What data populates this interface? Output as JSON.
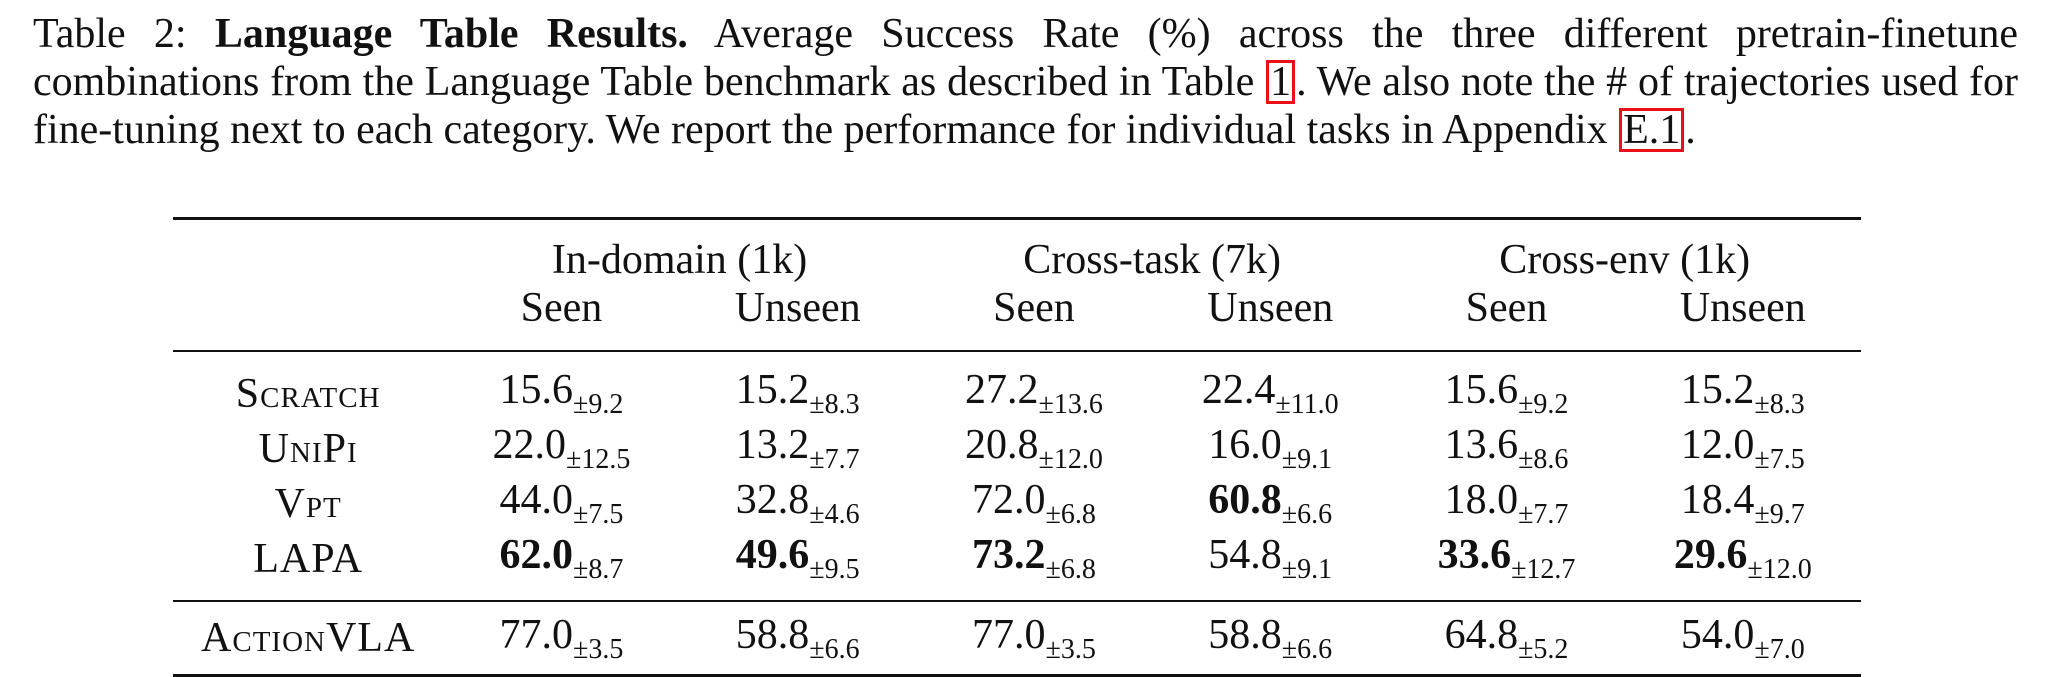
{
  "caption": {
    "label": "Table 2:",
    "title": "Language Table Results.",
    "text_1": "Average Success Rate (%) across the three different pretrain-finetune combinations from the Language Table benchmark as described in Table",
    "ref_table": "1",
    "text_2": ". We also note the # of trajectories used for fine-tuning next to each category. We report the performance for individual tasks in Appendix",
    "ref_appendix": "E.1",
    "text_3": "."
  },
  "table": {
    "groups": [
      "In-domain (1k)",
      "Cross-task (7k)",
      "Cross-env (1k)"
    ],
    "subheaders": [
      "Seen",
      "Unseen",
      "Seen",
      "Unseen",
      "Seen",
      "Unseen"
    ],
    "rows": [
      {
        "method": "Scratch",
        "cells": [
          {
            "value": "15.6",
            "std": "±9.2",
            "best": false
          },
          {
            "value": "15.2",
            "std": "±8.3",
            "best": false
          },
          {
            "value": "27.2",
            "std": "±13.6",
            "best": false
          },
          {
            "value": "22.4",
            "std": "±11.0",
            "best": false
          },
          {
            "value": "15.6",
            "std": "±9.2",
            "best": false
          },
          {
            "value": "15.2",
            "std": "±8.3",
            "best": false
          }
        ]
      },
      {
        "method": "UniPi",
        "cells": [
          {
            "value": "22.0",
            "std": "±12.5",
            "best": false
          },
          {
            "value": "13.2",
            "std": "±7.7",
            "best": false
          },
          {
            "value": "20.8",
            "std": "±12.0",
            "best": false
          },
          {
            "value": "16.0",
            "std": "±9.1",
            "best": false
          },
          {
            "value": "13.6",
            "std": "±8.6",
            "best": false
          },
          {
            "value": "12.0",
            "std": "±7.5",
            "best": false
          }
        ]
      },
      {
        "method": "Vpt",
        "cells": [
          {
            "value": "44.0",
            "std": "±7.5",
            "best": false
          },
          {
            "value": "32.8",
            "std": "±4.6",
            "best": false
          },
          {
            "value": "72.0",
            "std": "±6.8",
            "best": false
          },
          {
            "value": "60.8",
            "std": "±6.6",
            "best": true
          },
          {
            "value": "18.0",
            "std": "±7.7",
            "best": false
          },
          {
            "value": "18.4",
            "std": "±9.7",
            "best": false
          }
        ]
      },
      {
        "method": "LAPA",
        "cells": [
          {
            "value": "62.0",
            "std": "±8.7",
            "best": true
          },
          {
            "value": "49.6",
            "std": "±9.5",
            "best": true
          },
          {
            "value": "73.2",
            "std": "±6.8",
            "best": true
          },
          {
            "value": "54.8",
            "std": "±9.1",
            "best": false
          },
          {
            "value": "33.6",
            "std": "±12.7",
            "best": true
          },
          {
            "value": "29.6",
            "std": "±12.0",
            "best": true
          }
        ]
      }
    ],
    "reference_row": {
      "method": "ActionVLA",
      "cells": [
        {
          "value": "77.0",
          "std": "±3.5",
          "best": false
        },
        {
          "value": "58.8",
          "std": "±6.6",
          "best": false
        },
        {
          "value": "77.0",
          "std": "±3.5",
          "best": false
        },
        {
          "value": "58.8",
          "std": "±6.6",
          "best": false
        },
        {
          "value": "64.8",
          "std": "±5.2",
          "best": false
        },
        {
          "value": "54.0",
          "std": "±7.0",
          "best": false
        }
      ]
    }
  }
}
